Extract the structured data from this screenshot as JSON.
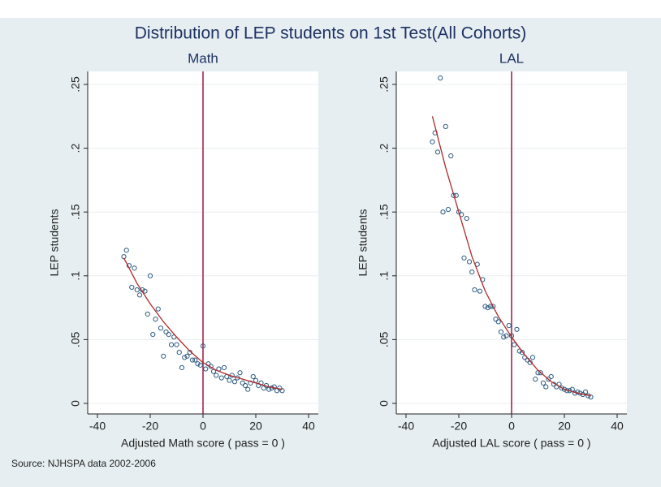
{
  "title": "Distribution of LEP students on 1st Test(All Cohorts)",
  "source": "Source: NJHSPA data 2002-2006",
  "chart_data": [
    {
      "type": "scatter",
      "title": "Math",
      "xlabel": "Adjusted Math score ( pass = 0 )",
      "ylabel": "LEP students",
      "xlim": [
        -40,
        40
      ],
      "ylim": [
        0,
        0.25
      ],
      "xticks": [
        -40,
        -20,
        0,
        20,
        40
      ],
      "yticks": [
        0,
        {
          "value": 0.05,
          "label": ".05"
        },
        {
          "value": 0.1,
          "label": ".1"
        },
        {
          "value": 0.15,
          "label": ".15"
        },
        {
          "value": 0.2,
          "label": ".2"
        },
        {
          "value": 0.25,
          "label": ".25"
        }
      ],
      "grid": true,
      "xline": 0,
      "xline_color": "#a0163e",
      "series": [
        {
          "kind": "points",
          "color": "#2c5a80",
          "x": [
            -30,
            -29,
            -28,
            -27,
            -26,
            -25,
            -24,
            -23,
            -22,
            -21,
            -20,
            -19,
            -18,
            -17,
            -16,
            -15,
            -14,
            -13,
            -12,
            -11,
            -10,
            -9,
            -8,
            -7,
            -6,
            -5,
            -4,
            -3,
            -2,
            -1,
            0,
            1,
            2,
            3,
            4,
            5,
            6,
            7,
            8,
            9,
            10,
            11,
            12,
            13,
            14,
            15,
            16,
            17,
            18,
            19,
            20,
            21,
            22,
            23,
            24,
            25,
            26,
            27,
            28,
            29,
            30
          ],
          "values": [
            0.115,
            0.12,
            0.108,
            0.091,
            0.106,
            0.089,
            0.085,
            0.089,
            0.088,
            0.07,
            0.1,
            0.054,
            0.066,
            0.074,
            0.059,
            0.037,
            0.056,
            0.054,
            0.046,
            0.052,
            0.046,
            0.04,
            0.028,
            0.036,
            0.037,
            0.04,
            0.034,
            0.034,
            0.031,
            0.03,
            0.045,
            0.027,
            0.031,
            0.029,
            0.025,
            0.022,
            0.027,
            0.02,
            0.028,
            0.021,
            0.018,
            0.022,
            0.017,
            0.02,
            0.024,
            0.016,
            0.014,
            0.011,
            0.016,
            0.021,
            0.018,
            0.014,
            0.016,
            0.012,
            0.014,
            0.011,
            0.012,
            0.013,
            0.01,
            0.012,
            0.01
          ]
        },
        {
          "kind": "line",
          "color": "#b02a2a",
          "x": [
            -30,
            -25,
            -20,
            -15,
            -10,
            -5,
            0,
            5,
            10,
            15,
            20,
            25,
            30
          ],
          "values": [
            0.114,
            0.094,
            0.078,
            0.064,
            0.052,
            0.041,
            0.032,
            0.026,
            0.022,
            0.019,
            0.016,
            0.013,
            0.011
          ]
        }
      ]
    },
    {
      "type": "scatter",
      "title": "LAL",
      "xlabel": "Adjusted LAL score ( pass = 0 )",
      "ylabel": "LEP students",
      "xlim": [
        -40,
        40
      ],
      "ylim": [
        0,
        0.25
      ],
      "xticks": [
        -40,
        -20,
        0,
        20,
        40
      ],
      "yticks": [
        0,
        {
          "value": 0.05,
          "label": ".05"
        },
        {
          "value": 0.1,
          "label": ".1"
        },
        {
          "value": 0.15,
          "label": ".15"
        },
        {
          "value": 0.2,
          "label": ".2"
        },
        {
          "value": 0.25,
          "label": ".25"
        }
      ],
      "grid": true,
      "xline": 0,
      "xline_color": "#a0163e",
      "series": [
        {
          "kind": "points",
          "color": "#2c5a80",
          "x": [
            -30,
            -29,
            -28,
            -27,
            -26,
            -25,
            -24,
            -23,
            -22,
            -21,
            -20,
            -19,
            -18,
            -17,
            -16,
            -15,
            -14,
            -13,
            -12,
            -11,
            -10,
            -9,
            -8,
            -7,
            -6,
            -5,
            -4,
            -3,
            -2,
            -1,
            0,
            1,
            2,
            3,
            4,
            5,
            6,
            7,
            8,
            9,
            10,
            11,
            12,
            13,
            14,
            15,
            16,
            17,
            18,
            19,
            20,
            21,
            22,
            23,
            24,
            25,
            26,
            27,
            28,
            29,
            30
          ],
          "values": [
            0.205,
            0.212,
            0.197,
            0.255,
            0.15,
            0.217,
            0.152,
            0.194,
            0.163,
            0.163,
            0.15,
            0.148,
            0.114,
            0.145,
            0.111,
            0.103,
            0.089,
            0.109,
            0.088,
            0.097,
            0.076,
            0.075,
            0.076,
            0.076,
            0.066,
            0.064,
            0.056,
            0.052,
            0.053,
            0.061,
            0.053,
            0.046,
            0.058,
            0.041,
            0.04,
            0.036,
            0.034,
            0.032,
            0.036,
            0.019,
            0.024,
            0.024,
            0.016,
            0.013,
            0.019,
            0.021,
            0.015,
            0.013,
            0.015,
            0.012,
            0.011,
            0.01,
            0.01,
            0.011,
            0.008,
            0.009,
            0.008,
            0.007,
            0.009,
            0.006,
            0.005
          ]
        },
        {
          "kind": "line",
          "color": "#b02a2a",
          "x": [
            -30,
            -25,
            -20,
            -15,
            -10,
            -5,
            0,
            5,
            10,
            15,
            20,
            25,
            30
          ],
          "values": [
            0.225,
            0.185,
            0.15,
            0.115,
            0.088,
            0.068,
            0.052,
            0.038,
            0.026,
            0.017,
            0.011,
            0.008,
            0.006
          ]
        }
      ]
    }
  ]
}
